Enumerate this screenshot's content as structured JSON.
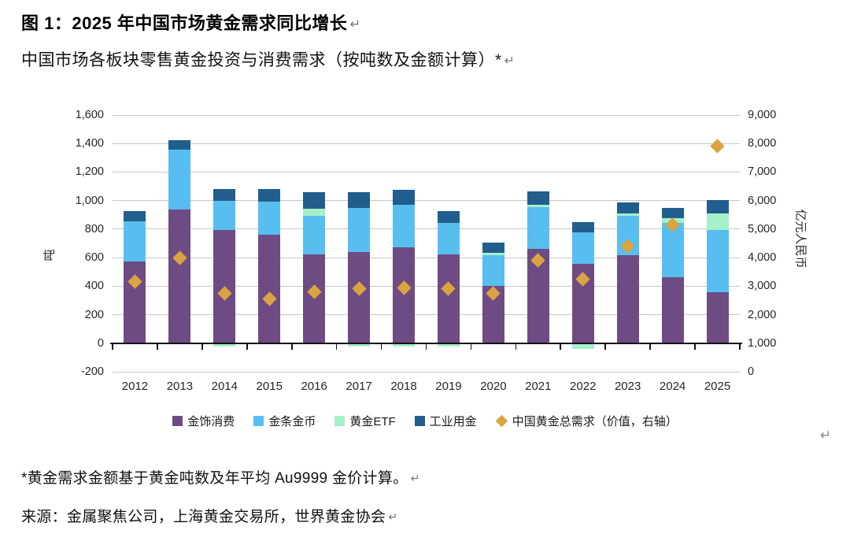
{
  "page": {
    "title": "图 1：2025 年中国市场黄金需求同比增长",
    "subtitle": "中国市场各板块零售黄金投资与消费需求（按吨数及金额计算）*",
    "footnote": "*黄金需求金额基于黄金吨数及年平均 Au9999 金价计算。",
    "source": "来源：金属聚焦公司，上海黄金交易所，世界黄金协会",
    "return_mark": "↵"
  },
  "colors": {
    "jewelry": "#6E4B82",
    "bar_coin": "#58BEF0",
    "gold_etf": "#A5F0C9",
    "industrial": "#215E8D",
    "total_demand": "#D9A441",
    "gridline": "#C7C7C7",
    "axis": "#111111"
  },
  "chart_data": {
    "type": "bar",
    "variant": "stacked-bars-with-right-axis-scatter",
    "grid": true,
    "legend_position": "bottom",
    "categories": [
      "2012",
      "2013",
      "2014",
      "2015",
      "2016",
      "2017",
      "2018",
      "2019",
      "2020",
      "2021",
      "2022",
      "2023",
      "2024",
      "2025"
    ],
    "series": [
      {
        "key": "jewelry",
        "name": "金饰消费",
        "color": "#6E4B82",
        "values": [
          575,
          935,
          795,
          760,
          620,
          640,
          670,
          625,
          400,
          660,
          555,
          615,
          465,
          355
        ]
      },
      {
        "key": "bar-coin",
        "name": "金条金币",
        "color": "#58BEF0",
        "values": [
          280,
          420,
          205,
          235,
          275,
          310,
          300,
          220,
          215,
          295,
          225,
          280,
          380,
          440
        ]
      },
      {
        "key": "gold-etf",
        "name": "黄金ETF",
        "color": "#A5F0C9",
        "values": [
          0,
          0,
          -10,
          0,
          50,
          -8,
          -10,
          -15,
          20,
          18,
          -30,
          15,
          30,
          115
        ]
      },
      {
        "key": "industrial",
        "name": "工业用金",
        "color": "#215E8D",
        "values": [
          70,
          70,
          80,
          85,
          115,
          110,
          105,
          80,
          70,
          90,
          70,
          75,
          75,
          95
        ]
      }
    ],
    "scatter_series": {
      "key": "total-demand",
      "name": "中国黄金总需求（价值，右轴）",
      "color": "#D9A441",
      "axis": "right",
      "marker": "diamond",
      "values": [
        3150,
        4000,
        2750,
        2550,
        2800,
        2900,
        2950,
        2900,
        2750,
        3900,
        3250,
        4400,
        5150,
        7900
      ]
    },
    "left_axis": {
      "label": "吨",
      "min": -200,
      "max": 1600,
      "ticks": [
        {
          "label": "1,600",
          "value": 1600
        },
        {
          "label": "1,400",
          "value": 1400
        },
        {
          "label": "1,200",
          "value": 1200
        },
        {
          "label": "1,000",
          "value": 1000
        },
        {
          "label": "800",
          "value": 800
        },
        {
          "label": "600",
          "value": 600
        },
        {
          "label": "400",
          "value": 400
        },
        {
          "label": "200",
          "value": 200
        },
        {
          "label": "0",
          "value": 0
        },
        {
          "label": "-200",
          "value": -200
        }
      ]
    },
    "right_axis": {
      "label": "亿元人民币",
      "min": 0,
      "max": 9000,
      "ticks": [
        {
          "label": "9,000",
          "value": 9000
        },
        {
          "label": "8,000",
          "value": 8000
        },
        {
          "label": "7,000",
          "value": 7000
        },
        {
          "label": "6,000",
          "value": 6000
        },
        {
          "label": "5,000",
          "value": 5000
        },
        {
          "label": "4,000",
          "value": 4000
        },
        {
          "label": "3,000",
          "value": 3000
        },
        {
          "label": "2,000",
          "value": 2000
        },
        {
          "label": "1,000",
          "value": 1000
        },
        {
          "label": "0",
          "value": 0
        }
      ]
    }
  }
}
